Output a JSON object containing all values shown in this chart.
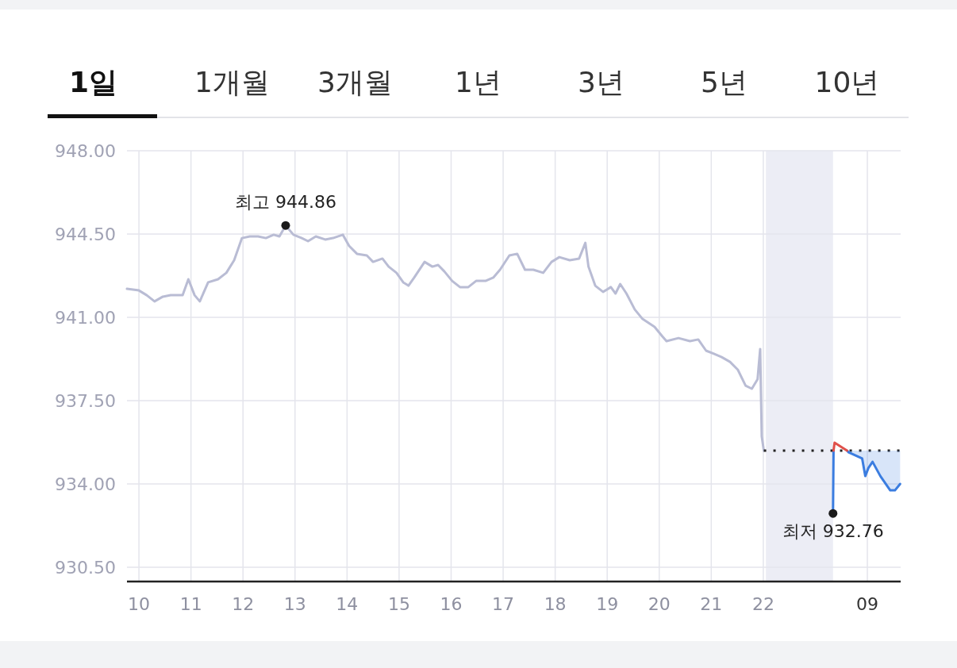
{
  "chart_data": {
    "type": "line",
    "annotations": [
      "1일",
      "1개월",
      "3개월",
      "1년",
      "3년",
      "5년",
      "10년",
      {
        "text": "최고 944.86",
        "x": 12.82,
        "y": 944.86
      },
      {
        "text": "최저 932.76",
        "x": 23.34,
        "y": 932.76
      },
      "09"
    ],
    "series": [
      {
        "color": "#b9bcd4",
        "x": [
          9.77,
          10,
          10.15,
          10.3,
          10.46,
          10.61,
          10.84,
          10.95,
          11.07,
          11.17,
          11.33,
          11.52,
          11.68,
          11.83,
          11.98,
          12.13,
          12.29,
          12.44,
          12.59,
          12.7,
          12.82,
          12.97,
          13.13,
          13.25,
          13.4,
          13.58,
          13.73,
          13.92,
          14.04,
          14.19,
          14.38,
          14.5,
          14.68,
          14.8,
          14.95,
          15.08,
          15.18,
          15.29,
          15.49,
          15.64,
          15.75,
          15.87,
          16.02,
          16.17,
          16.33,
          16.48,
          16.66,
          16.81,
          16.94,
          17.12,
          17.27,
          17.42,
          17.58,
          17.77,
          17.93,
          18.08,
          18.28,
          18.46,
          18.58,
          18.64,
          18.77,
          18.92,
          19.07,
          19.16,
          19.25,
          19.37,
          19.53,
          19.68,
          19.91,
          20.06,
          20.14,
          20.37,
          20.59,
          20.75,
          20.9,
          21.05,
          21.2,
          21.36,
          21.51,
          21.66,
          21.78,
          21.89,
          21.94,
          21.97,
          22.01
        ],
        "values": [
          942.2,
          942.13,
          941.93,
          941.67,
          941.87,
          941.93,
          941.93,
          942.6,
          941.93,
          941.67,
          942.47,
          942.6,
          942.87,
          943.4,
          944.33,
          944.4,
          944.4,
          944.33,
          944.47,
          944.4,
          944.86,
          944.47,
          944.33,
          944.2,
          944.4,
          944.27,
          944.33,
          944.47,
          944.0,
          943.67,
          943.6,
          943.33,
          943.47,
          943.13,
          942.87,
          942.47,
          942.33,
          942.67,
          943.33,
          943.13,
          943.2,
          942.93,
          942.53,
          942.27,
          942.27,
          942.53,
          942.53,
          942.67,
          943.0,
          943.6,
          943.67,
          943.0,
          943.0,
          942.87,
          943.33,
          943.53,
          943.4,
          943.47,
          944.13,
          943.13,
          942.33,
          942.07,
          942.27,
          942.0,
          942.4,
          942.0,
          941.33,
          940.93,
          940.6,
          940.2,
          940.0,
          940.13,
          940.0,
          940.07,
          939.6,
          939.47,
          939.33,
          939.13,
          938.8,
          938.13,
          938.0,
          938.4,
          939.67,
          936.0,
          935.4
        ]
      },
      {
        "color": "#222222",
        "line_style": "dotted",
        "x": [
          22.01,
          24.63
        ],
        "values": [
          935.4,
          935.4
        ]
      },
      {
        "color": "#3b7de0",
        "x": [
          23.34,
          23.35,
          23.36,
          23.61,
          23.64,
          23.9,
          23.96,
          24.02,
          24.1,
          24.25,
          24.44,
          24.53,
          24.63
        ],
        "values": [
          932.76,
          935.4,
          null,
          935.4,
          935.33,
          935.07,
          934.33,
          934.67,
          934.93,
          934.33,
          933.73,
          933.73,
          934.0
        ],
        "lower": [
          932.76,
          935.4,
          null,
          935.4,
          935.33,
          935.07,
          934.33,
          934.67,
          934.93,
          934.33,
          933.73,
          933.73,
          934.0
        ],
        "upper": [
          935.4,
          935.4,
          null,
          935.4,
          935.4,
          935.4,
          935.4,
          935.4,
          935.4,
          935.4,
          935.4,
          935.4,
          935.4
        ]
      },
      {
        "color": "#e0504a",
        "x": [
          23.35,
          23.37,
          23.61
        ],
        "values": [
          935.4,
          935.73,
          935.4
        ]
      }
    ],
    "bands": [
      {
        "axis": "x",
        "from": 22.05,
        "to": 23.34,
        "color": "#ecedf5"
      }
    ],
    "ref_lines": [
      {
        "axis": "x",
        "value": 24,
        "color": "#e4e5ec"
      }
    ],
    "xlim": [
      9.77,
      24.64
    ],
    "xticks": [
      10,
      11,
      12,
      13,
      14,
      15,
      16,
      17,
      18,
      19,
      20,
      21,
      22
    ],
    "ylim": [
      929.9,
      948
    ],
    "yticks": [
      {
        "value": 948,
        "label": "948.00"
      },
      {
        "value": 944.5,
        "label": "944.50"
      },
      {
        "value": 941,
        "label": "941.00"
      },
      {
        "value": 937.5,
        "label": "937.50"
      },
      {
        "value": 934,
        "label": "934.00"
      },
      {
        "value": 930.5,
        "label": "930.50"
      }
    ],
    "grid": true,
    "marker": "none"
  }
}
